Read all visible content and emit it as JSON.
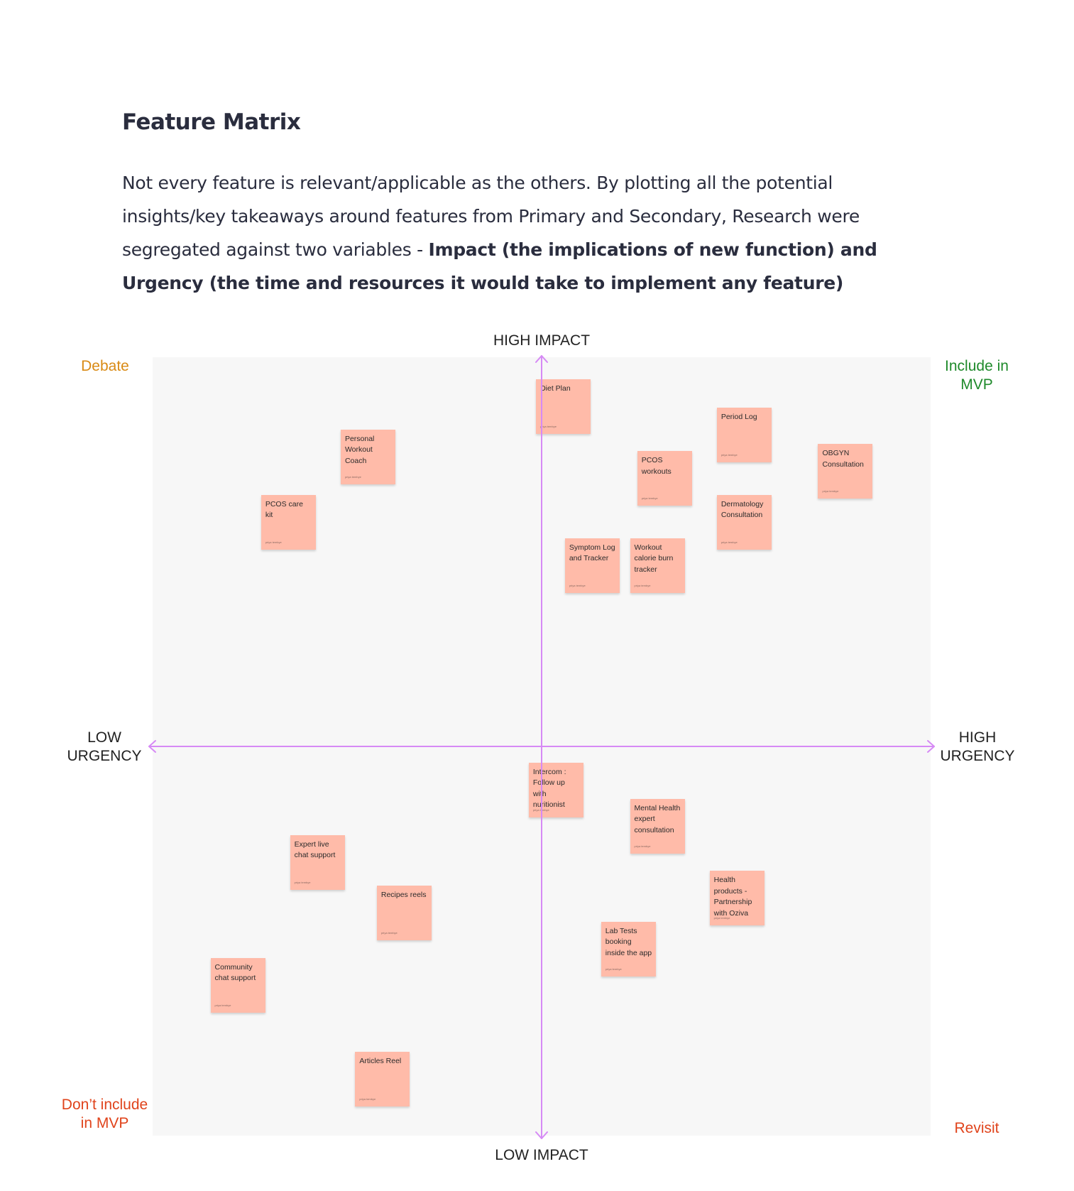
{
  "header": {
    "title": "Feature Matrix",
    "intro_plain": "Not every feature is relevant/applicable as the others. By plotting all the potential insights/key takeaways around features from Primary and Secondary, Research were segregated against two variables - ",
    "intro_bold": "Impact (the implications of new function) and Urgency (the time and resources it would take to implement any feature)"
  },
  "matrix": {
    "axis_labels": {
      "top": "HIGH IMPACT",
      "bottom": "LOW IMPACT",
      "left": "LOW URGENCY",
      "right": "HIGH URGENCY"
    },
    "quadrants": {
      "top_left": "Debate",
      "top_right": "Include in MVP",
      "bottom_left": "Don’t include in MVP",
      "bottom_right": "Revisit"
    },
    "colors": {
      "board": "#f7f7f7",
      "axis": "#d68af5",
      "note": "#ffbba9",
      "debate": "#d98a14",
      "include": "#1f8a2b",
      "dont_include": "#e0431b",
      "revisit": "#e0431b"
    },
    "note_author": "priya tembye",
    "notes": [
      {
        "label": "Diet Plan",
        "urgency": 0.53,
        "impact": 0.97
      },
      {
        "label": "Period Log",
        "urgency": 0.78,
        "impact": 0.93
      },
      {
        "label": "Personal Workout Coach",
        "urgency": 0.26,
        "impact": 0.9
      },
      {
        "label": "PCOS workouts",
        "urgency": 0.67,
        "impact": 0.87
      },
      {
        "label": "OBGYN Consultation",
        "urgency": 0.92,
        "impact": 0.88
      },
      {
        "label": "PCOS care kit",
        "urgency": 0.15,
        "impact": 0.81
      },
      {
        "label": "Dermatology Consultation",
        "urgency": 0.78,
        "impact": 0.81
      },
      {
        "label": "Symptom Log and Tracker",
        "urgency": 0.57,
        "impact": 0.75
      },
      {
        "label": "Workout calorie burn tracker",
        "urgency": 0.66,
        "impact": 0.75
      },
      {
        "label": "Intercom : Follow up with nuritionist",
        "urgency": 0.52,
        "impact": 0.44
      },
      {
        "label": "Mental Health expert consultation",
        "urgency": 0.66,
        "impact": 0.39
      },
      {
        "label": "Expert live chat support",
        "urgency": 0.19,
        "impact": 0.34
      },
      {
        "label": "Recipes reels",
        "urgency": 0.31,
        "impact": 0.27
      },
      {
        "label": "Health products - Partnership with Oziva",
        "urgency": 0.77,
        "impact": 0.29
      },
      {
        "label": "Lab Tests booking inside the app",
        "urgency": 0.62,
        "impact": 0.22
      },
      {
        "label": "Community chat support",
        "urgency": 0.08,
        "impact": 0.17
      },
      {
        "label": "Articles Reel",
        "urgency": 0.28,
        "impact": 0.04
      }
    ]
  }
}
